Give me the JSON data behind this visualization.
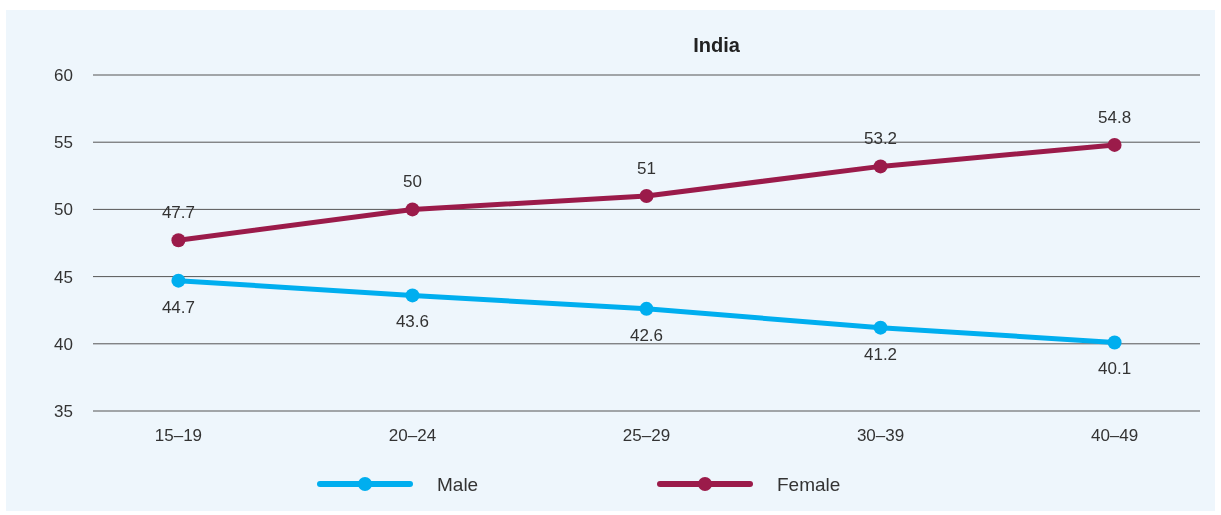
{
  "chart_data": {
    "type": "line",
    "title": "India",
    "categories": [
      "15–19",
      "20–24",
      "25–29",
      "30–39",
      "40–49"
    ],
    "series": [
      {
        "name": "Male",
        "color": "#00aeef",
        "values": [
          44.7,
          43.6,
          42.6,
          41.2,
          40.1
        ]
      },
      {
        "name": "Female",
        "color": "#9b1b4a",
        "values": [
          47.7,
          50,
          51,
          53.2,
          54.8
        ]
      }
    ],
    "ylim": [
      35,
      60
    ],
    "yticks": [
      35,
      40,
      45,
      50,
      55,
      60
    ],
    "grid": "y",
    "legend": "bottom",
    "marker": "circle",
    "data_labels": true
  }
}
